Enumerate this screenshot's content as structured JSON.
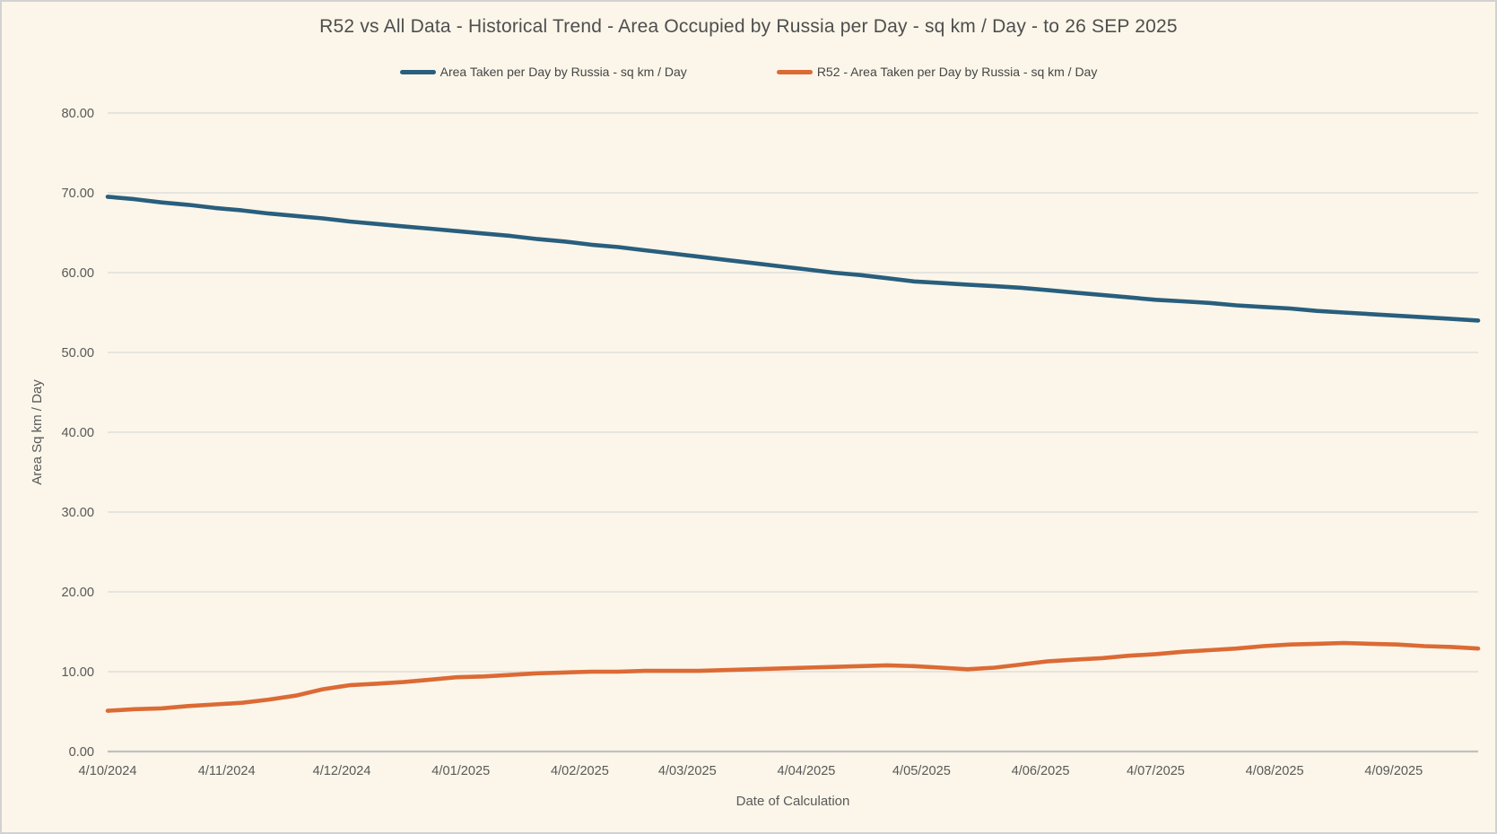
{
  "window": {
    "background_color": "#FBF6E9",
    "border_color": "#D2D2D2",
    "gridline_color": "#D9D9D9",
    "axis_line_color": "#C0C0C0",
    "text_color": "#595959"
  },
  "chart_data": {
    "type": "line",
    "title": "R52 vs All Data - Historical Trend - Area Occupied by Russia per Day - sq km / Day - to 26 SEP 2025",
    "xlabel": "Date of Calculation",
    "ylabel": "Area Sq km / Day",
    "ylim": [
      0,
      80
    ],
    "y_tick_step": 10,
    "y_tick_labels": [
      "0.00",
      "10.00",
      "20.00",
      "30.00",
      "40.00",
      "50.00",
      "60.00",
      "70.00",
      "80.00"
    ],
    "x_tick_labels": [
      "4/10/2024",
      "4/11/2024",
      "4/12/2024",
      "4/01/2025",
      "4/02/2025",
      "4/03/2025",
      "4/04/2025",
      "4/05/2025",
      "4/06/2025",
      "4/07/2025",
      "4/08/2025",
      "4/09/2025"
    ],
    "x_tick_day_offsets": [
      0,
      31,
      61,
      92,
      123,
      151,
      182,
      212,
      243,
      273,
      304,
      335
    ],
    "x_total_days": 357,
    "point_interval_days": 7,
    "grid": true,
    "legend_position": "top-center",
    "series": [
      {
        "name": "Area Taken per Day by Russia - sq km / Day",
        "color": "#295E7D",
        "values": [
          69.5,
          69.2,
          68.8,
          68.5,
          68.1,
          67.8,
          67.4,
          67.1,
          66.8,
          66.4,
          66.1,
          65.8,
          65.5,
          65.2,
          64.9,
          64.6,
          64.2,
          63.9,
          63.5,
          63.2,
          62.8,
          62.4,
          62.0,
          61.6,
          61.2,
          60.8,
          60.4,
          60.0,
          59.7,
          59.3,
          58.9,
          58.7,
          58.5,
          58.3,
          58.1,
          57.8,
          57.5,
          57.2,
          56.9,
          56.6,
          56.4,
          56.2,
          55.9,
          55.7,
          55.5,
          55.2,
          55.0,
          54.8,
          54.6,
          54.4,
          54.2,
          54.0
        ]
      },
      {
        "name": "R52 - Area Taken per Day by Russia - sq km / Day",
        "color": "#DC6A35",
        "values": [
          5.1,
          5.3,
          5.4,
          5.7,
          5.9,
          6.1,
          6.5,
          7.0,
          7.8,
          8.3,
          8.5,
          8.7,
          9.0,
          9.3,
          9.4,
          9.6,
          9.8,
          9.9,
          10.0,
          10.0,
          10.1,
          10.1,
          10.1,
          10.2,
          10.3,
          10.4,
          10.5,
          10.6,
          10.7,
          10.8,
          10.7,
          10.5,
          10.3,
          10.5,
          10.9,
          11.3,
          11.5,
          11.7,
          12.0,
          12.2,
          12.5,
          12.7,
          12.9,
          13.2,
          13.4,
          13.5,
          13.6,
          13.5,
          13.4,
          13.2,
          13.1,
          12.9
        ]
      }
    ]
  }
}
